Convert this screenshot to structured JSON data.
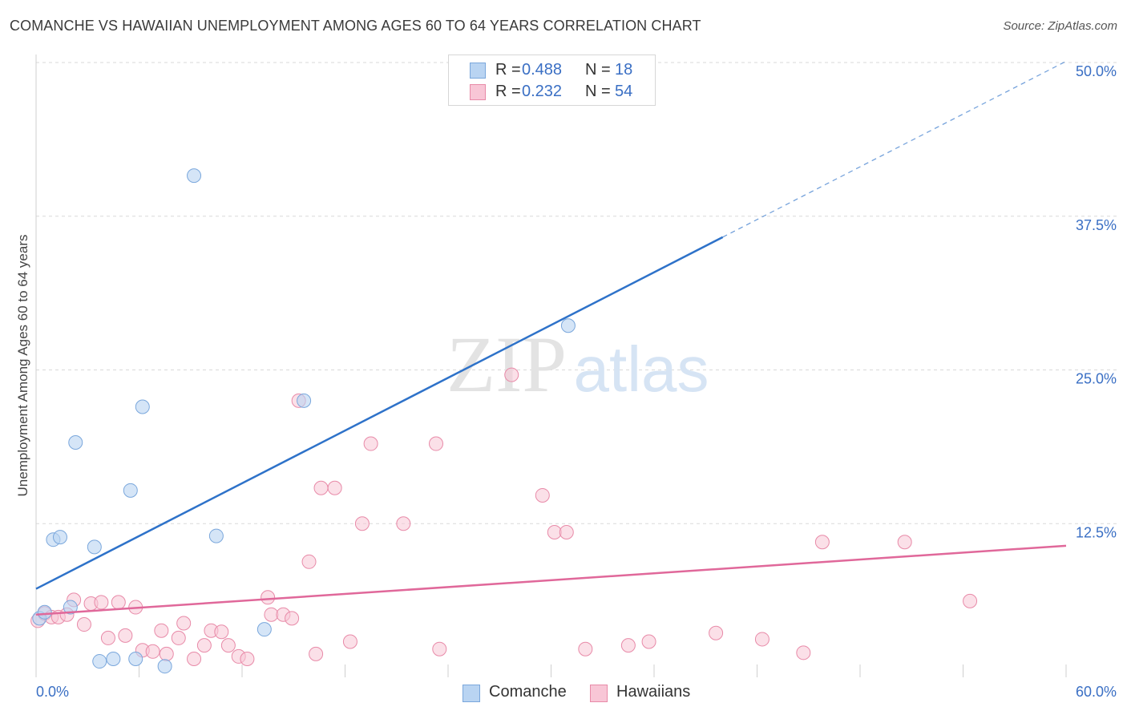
{
  "title": "COMANCHE VS HAWAIIAN UNEMPLOYMENT AMONG AGES 60 TO 64 YEARS CORRELATION CHART",
  "source": "Source: ZipAtlas.com",
  "watermark": {
    "zip": "ZIP",
    "atlas": "atlas"
  },
  "legend": {
    "rows": [
      {
        "r_label": "R =",
        "r_value": "0.488",
        "n_label": "N =",
        "n_value": "18"
      },
      {
        "r_label": "R =",
        "r_value": "0.232",
        "n_label": "N =",
        "n_value": "54"
      }
    ]
  },
  "bottom_legend": [
    "Comanche",
    "Hawaiians"
  ],
  "colors": {
    "comanche_fill": "#b9d4f2",
    "comanche_stroke": "#7aa7dc",
    "comanche_line": "#2e72c9",
    "hawaiian_fill": "#f8c6d6",
    "hawaiian_stroke": "#e88aa8",
    "hawaiian_line": "#e0689a",
    "tick_label": "#3a6fc4",
    "grid": "#d9d9d9"
  },
  "chart_data": {
    "type": "scatter",
    "title": "COMANCHE VS HAWAIIAN UNEMPLOYMENT AMONG AGES 60 TO 64 YEARS CORRELATION CHART",
    "xlabel": "",
    "ylabel": "Unemployment Among Ages 60 to 64 years",
    "xlim": [
      0,
      60
    ],
    "ylim": [
      0,
      50
    ],
    "x_tick_labels": [
      "0.0%",
      "60.0%"
    ],
    "y_ticks": [
      12.5,
      25.0,
      37.5,
      50.0
    ],
    "y_tick_labels": [
      "12.5%",
      "25.0%",
      "37.5%",
      "50.0%"
    ],
    "grid": true,
    "legend_position": "top-center",
    "series": [
      {
        "name": "Comanche",
        "r": 0.488,
        "n": 18,
        "points": [
          [
            0.2,
            4.8
          ],
          [
            0.5,
            5.3
          ],
          [
            2.0,
            5.7
          ],
          [
            1.0,
            11.2
          ],
          [
            1.4,
            11.4
          ],
          [
            2.3,
            19.1
          ],
          [
            3.4,
            10.6
          ],
          [
            3.7,
            1.3
          ],
          [
            4.5,
            1.5
          ],
          [
            5.5,
            15.2
          ],
          [
            5.8,
            1.5
          ],
          [
            6.2,
            22.0
          ],
          [
            7.5,
            0.9
          ],
          [
            9.2,
            40.8
          ],
          [
            10.5,
            11.5
          ],
          [
            13.3,
            3.9
          ],
          [
            15.6,
            22.5
          ],
          [
            31.0,
            28.6
          ]
        ],
        "trend": {
          "x": [
            0,
            40.0
          ],
          "y": [
            7.2,
            35.8
          ],
          "dashed_to": [
            60,
            50.1
          ]
        }
      },
      {
        "name": "Hawaiians",
        "r": 0.232,
        "n": 54,
        "points": [
          [
            0.1,
            4.6
          ],
          [
            0.5,
            5.2
          ],
          [
            0.9,
            4.9
          ],
          [
            1.3,
            4.9
          ],
          [
            1.8,
            5.1
          ],
          [
            2.2,
            6.3
          ],
          [
            2.8,
            4.3
          ],
          [
            3.2,
            6.0
          ],
          [
            3.8,
            6.1
          ],
          [
            4.2,
            3.2
          ],
          [
            4.8,
            6.1
          ],
          [
            5.2,
            3.4
          ],
          [
            5.8,
            5.7
          ],
          [
            6.2,
            2.2
          ],
          [
            6.8,
            2.1
          ],
          [
            7.3,
            3.8
          ],
          [
            7.6,
            1.9
          ],
          [
            8.3,
            3.2
          ],
          [
            8.6,
            4.4
          ],
          [
            9.2,
            1.5
          ],
          [
            9.8,
            2.6
          ],
          [
            10.2,
            3.8
          ],
          [
            10.8,
            3.7
          ],
          [
            11.2,
            2.6
          ],
          [
            11.8,
            1.7
          ],
          [
            12.3,
            1.5
          ],
          [
            13.5,
            6.5
          ],
          [
            13.7,
            5.1
          ],
          [
            14.4,
            5.1
          ],
          [
            14.9,
            4.8
          ],
          [
            15.3,
            22.5
          ],
          [
            15.9,
            9.4
          ],
          [
            16.3,
            1.9
          ],
          [
            16.6,
            15.4
          ],
          [
            17.4,
            15.4
          ],
          [
            18.3,
            2.9
          ],
          [
            19.0,
            12.5
          ],
          [
            19.5,
            19.0
          ],
          [
            21.4,
            12.5
          ],
          [
            23.3,
            19.0
          ],
          [
            23.5,
            2.3
          ],
          [
            27.7,
            24.6
          ],
          [
            29.5,
            14.8
          ],
          [
            30.2,
            11.8
          ],
          [
            30.9,
            11.8
          ],
          [
            32.0,
            2.3
          ],
          [
            34.5,
            2.6
          ],
          [
            35.7,
            2.9
          ],
          [
            39.6,
            3.6
          ],
          [
            42.3,
            3.1
          ],
          [
            44.7,
            2.0
          ],
          [
            45.8,
            11.0
          ],
          [
            50.6,
            11.0
          ],
          [
            54.4,
            6.2
          ]
        ],
        "trend": {
          "x": [
            0,
            60
          ],
          "y": [
            5.1,
            10.7
          ]
        }
      }
    ]
  }
}
